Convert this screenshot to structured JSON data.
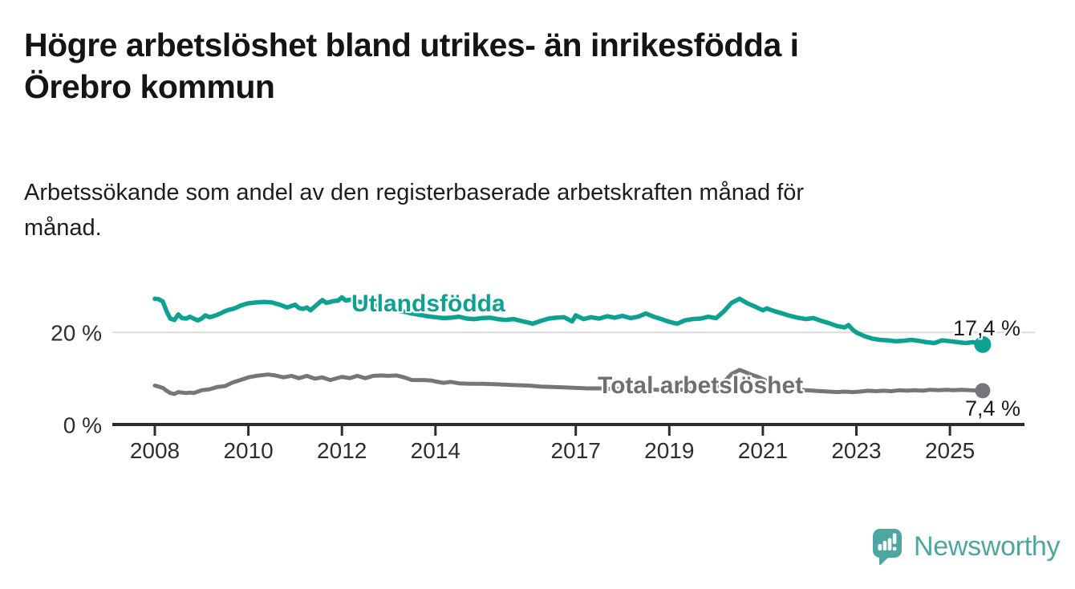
{
  "header": {
    "title": "Högre arbetslöshet bland utrikes- än inrikesfödda i\nÖrebro kommun",
    "subtitle": "Arbetssökande som andel av den registerbaserade arbetskraften månad för\nmånad."
  },
  "chart_data": {
    "type": "line",
    "title": "Högre arbetslöshet bland utrikes- än inrikesfödda i Örebro kommun",
    "subtitle": "Arbetssökande som andel av den registerbaserade arbetskraften månad för månad.",
    "unit": "%",
    "legend_position": "inline-labels-on-lines",
    "grid": "single horizontal gridline at 20 %",
    "x_axis": {
      "range": [
        2007.1,
        2026.6
      ],
      "ticks": [
        {
          "year": 2008,
          "label": "2008"
        },
        {
          "year": 2010,
          "label": "2010"
        },
        {
          "year": 2012,
          "label": "2012"
        },
        {
          "year": 2014,
          "label": "2014"
        },
        {
          "year": 2017,
          "label": "2017"
        },
        {
          "year": 2019,
          "label": "2019"
        },
        {
          "year": 2021,
          "label": "2021"
        },
        {
          "year": 2023,
          "label": "2023"
        },
        {
          "year": 2025,
          "label": "2025"
        }
      ]
    },
    "y_axis": {
      "range": [
        0,
        30.8
      ],
      "ticks": [
        {
          "value": 0,
          "label": "0 %",
          "gridline": false
        },
        {
          "value": 20,
          "label": "20 %",
          "gridline": true
        }
      ]
    },
    "series": [
      {
        "name": "Utlandsfödda",
        "color": "#0ca191",
        "end_value": 17.4,
        "end_label": "17,4 %",
        "points": [
          [
            2008.0,
            27.3
          ],
          [
            2008.08,
            27.2
          ],
          [
            2008.17,
            26.7
          ],
          [
            2008.25,
            24.6
          ],
          [
            2008.33,
            23.0
          ],
          [
            2008.42,
            22.7
          ],
          [
            2008.5,
            23.9
          ],
          [
            2008.58,
            23.1
          ],
          [
            2008.67,
            23.0
          ],
          [
            2008.75,
            23.4
          ],
          [
            2008.83,
            23.0
          ],
          [
            2008.92,
            22.6
          ],
          [
            2009.0,
            23.0
          ],
          [
            2009.08,
            23.7
          ],
          [
            2009.17,
            23.3
          ],
          [
            2009.25,
            23.5
          ],
          [
            2009.33,
            23.8
          ],
          [
            2009.42,
            24.2
          ],
          [
            2009.5,
            24.6
          ],
          [
            2009.58,
            24.9
          ],
          [
            2009.67,
            25.1
          ],
          [
            2009.75,
            25.4
          ],
          [
            2009.83,
            25.8
          ],
          [
            2009.92,
            26.1
          ],
          [
            2010.0,
            26.3
          ],
          [
            2010.17,
            26.5
          ],
          [
            2010.33,
            26.6
          ],
          [
            2010.5,
            26.5
          ],
          [
            2010.67,
            26.0
          ],
          [
            2010.83,
            25.4
          ],
          [
            2011.0,
            26.0
          ],
          [
            2011.08,
            25.3
          ],
          [
            2011.17,
            25.1
          ],
          [
            2011.25,
            25.4
          ],
          [
            2011.33,
            24.8
          ],
          [
            2011.5,
            26.3
          ],
          [
            2011.58,
            27.0
          ],
          [
            2011.67,
            26.4
          ],
          [
            2011.83,
            26.8
          ],
          [
            2011.92,
            26.9
          ],
          [
            2012.0,
            27.6
          ],
          [
            2012.08,
            26.9
          ],
          [
            2012.17,
            27.1
          ],
          [
            2012.33,
            26.7
          ],
          [
            2012.5,
            26.4
          ],
          [
            2012.67,
            26.0
          ],
          [
            2012.83,
            25.5
          ],
          [
            2013.0,
            25.1
          ],
          [
            2013.17,
            24.8
          ],
          [
            2013.33,
            24.5
          ],
          [
            2013.5,
            24.1
          ],
          [
            2013.67,
            23.8
          ],
          [
            2013.83,
            23.5
          ],
          [
            2014.0,
            23.3
          ],
          [
            2014.17,
            23.1
          ],
          [
            2014.33,
            23.2
          ],
          [
            2014.5,
            23.4
          ],
          [
            2014.67,
            23.0
          ],
          [
            2014.83,
            22.9
          ],
          [
            2015.0,
            23.1
          ],
          [
            2015.17,
            23.2
          ],
          [
            2015.33,
            22.9
          ],
          [
            2015.5,
            22.7
          ],
          [
            2015.67,
            22.9
          ],
          [
            2015.83,
            22.5
          ],
          [
            2016.0,
            22.1
          ],
          [
            2016.08,
            21.9
          ],
          [
            2016.25,
            22.5
          ],
          [
            2016.42,
            23.0
          ],
          [
            2016.58,
            23.2
          ],
          [
            2016.75,
            23.3
          ],
          [
            2016.92,
            22.4
          ],
          [
            2017.0,
            23.7
          ],
          [
            2017.17,
            22.9
          ],
          [
            2017.33,
            23.3
          ],
          [
            2017.5,
            23.0
          ],
          [
            2017.67,
            23.5
          ],
          [
            2017.83,
            23.2
          ],
          [
            2018.0,
            23.6
          ],
          [
            2018.17,
            23.1
          ],
          [
            2018.33,
            23.4
          ],
          [
            2018.5,
            24.1
          ],
          [
            2018.67,
            23.4
          ],
          [
            2018.83,
            22.9
          ],
          [
            2019.0,
            22.3
          ],
          [
            2019.17,
            21.9
          ],
          [
            2019.33,
            22.6
          ],
          [
            2019.5,
            22.9
          ],
          [
            2019.67,
            23.0
          ],
          [
            2019.83,
            23.4
          ],
          [
            2020.0,
            23.1
          ],
          [
            2020.17,
            24.6
          ],
          [
            2020.33,
            26.4
          ],
          [
            2020.5,
            27.3
          ],
          [
            2020.67,
            26.3
          ],
          [
            2020.83,
            25.6
          ],
          [
            2021.0,
            24.8
          ],
          [
            2021.08,
            25.2
          ],
          [
            2021.25,
            24.6
          ],
          [
            2021.42,
            24.1
          ],
          [
            2021.58,
            23.6
          ],
          [
            2021.75,
            23.2
          ],
          [
            2021.92,
            22.9
          ],
          [
            2022.08,
            23.1
          ],
          [
            2022.25,
            22.5
          ],
          [
            2022.42,
            22.0
          ],
          [
            2022.58,
            21.4
          ],
          [
            2022.75,
            21.1
          ],
          [
            2022.83,
            21.6
          ],
          [
            2022.92,
            20.6
          ],
          [
            2023.0,
            20.0
          ],
          [
            2023.17,
            19.2
          ],
          [
            2023.33,
            18.7
          ],
          [
            2023.5,
            18.4
          ],
          [
            2023.67,
            18.3
          ],
          [
            2023.83,
            18.1
          ],
          [
            2024.0,
            18.2
          ],
          [
            2024.17,
            18.4
          ],
          [
            2024.33,
            18.2
          ],
          [
            2024.5,
            17.9
          ],
          [
            2024.67,
            17.7
          ],
          [
            2024.83,
            18.3
          ],
          [
            2025.0,
            18.1
          ],
          [
            2025.17,
            17.9
          ],
          [
            2025.33,
            17.7
          ],
          [
            2025.5,
            17.9
          ],
          [
            2025.7,
            17.4
          ]
        ]
      },
      {
        "name": "Total arbetslöshet",
        "color": "#76757b",
        "end_value": 7.4,
        "end_label": "7,4 %",
        "points": [
          [
            2008.0,
            8.5
          ],
          [
            2008.08,
            8.3
          ],
          [
            2008.17,
            8.0
          ],
          [
            2008.25,
            7.4
          ],
          [
            2008.33,
            6.9
          ],
          [
            2008.42,
            6.7
          ],
          [
            2008.5,
            7.1
          ],
          [
            2008.58,
            7.0
          ],
          [
            2008.67,
            6.9
          ],
          [
            2008.75,
            7.0
          ],
          [
            2008.83,
            6.9
          ],
          [
            2008.92,
            7.2
          ],
          [
            2009.0,
            7.5
          ],
          [
            2009.17,
            7.7
          ],
          [
            2009.33,
            8.2
          ],
          [
            2009.5,
            8.4
          ],
          [
            2009.67,
            9.2
          ],
          [
            2009.83,
            9.7
          ],
          [
            2010.0,
            10.3
          ],
          [
            2010.17,
            10.6
          ],
          [
            2010.42,
            10.9
          ],
          [
            2010.58,
            10.7
          ],
          [
            2010.75,
            10.3
          ],
          [
            2010.92,
            10.6
          ],
          [
            2011.08,
            10.1
          ],
          [
            2011.25,
            10.6
          ],
          [
            2011.42,
            10.0
          ],
          [
            2011.58,
            10.3
          ],
          [
            2011.75,
            9.7
          ],
          [
            2012.0,
            10.4
          ],
          [
            2012.17,
            10.1
          ],
          [
            2012.33,
            10.6
          ],
          [
            2012.5,
            10.1
          ],
          [
            2012.67,
            10.6
          ],
          [
            2012.83,
            10.7
          ],
          [
            2013.0,
            10.6
          ],
          [
            2013.17,
            10.7
          ],
          [
            2013.33,
            10.3
          ],
          [
            2013.5,
            9.7
          ],
          [
            2013.75,
            9.7
          ],
          [
            2013.92,
            9.6
          ],
          [
            2014.0,
            9.4
          ],
          [
            2014.17,
            9.1
          ],
          [
            2014.33,
            9.3
          ],
          [
            2014.5,
            9.0
          ],
          [
            2014.75,
            8.9
          ],
          [
            2015.0,
            8.9
          ],
          [
            2015.25,
            8.8
          ],
          [
            2015.5,
            8.7
          ],
          [
            2015.75,
            8.6
          ],
          [
            2016.0,
            8.5
          ],
          [
            2016.25,
            8.3
          ],
          [
            2016.5,
            8.2
          ],
          [
            2016.75,
            8.1
          ],
          [
            2017.0,
            8.0
          ],
          [
            2017.25,
            7.9
          ],
          [
            2017.5,
            7.9
          ],
          [
            2017.75,
            7.8
          ],
          [
            2018.0,
            7.8
          ],
          [
            2018.25,
            7.7
          ],
          [
            2018.5,
            7.7
          ],
          [
            2018.75,
            7.6
          ],
          [
            2019.0,
            7.6
          ],
          [
            2019.25,
            7.6
          ],
          [
            2019.5,
            7.7
          ],
          [
            2019.75,
            7.8
          ],
          [
            2020.0,
            8.2
          ],
          [
            2020.17,
            9.3
          ],
          [
            2020.33,
            11.0
          ],
          [
            2020.5,
            11.9
          ],
          [
            2020.58,
            11.6
          ],
          [
            2020.75,
            10.9
          ],
          [
            2020.92,
            10.3
          ],
          [
            2021.08,
            9.5
          ],
          [
            2021.25,
            8.9
          ],
          [
            2021.42,
            8.3
          ],
          [
            2021.58,
            7.9
          ],
          [
            2021.75,
            7.7
          ],
          [
            2021.92,
            7.5
          ],
          [
            2022.08,
            7.4
          ],
          [
            2022.25,
            7.3
          ],
          [
            2022.42,
            7.2
          ],
          [
            2022.58,
            7.1
          ],
          [
            2022.75,
            7.2
          ],
          [
            2022.92,
            7.1
          ],
          [
            2023.08,
            7.2
          ],
          [
            2023.25,
            7.4
          ],
          [
            2023.42,
            7.3
          ],
          [
            2023.58,
            7.4
          ],
          [
            2023.75,
            7.3
          ],
          [
            2023.92,
            7.5
          ],
          [
            2024.08,
            7.4
          ],
          [
            2024.25,
            7.5
          ],
          [
            2024.42,
            7.4
          ],
          [
            2024.58,
            7.6
          ],
          [
            2024.75,
            7.5
          ],
          [
            2024.92,
            7.6
          ],
          [
            2025.08,
            7.5
          ],
          [
            2025.25,
            7.6
          ],
          [
            2025.42,
            7.5
          ],
          [
            2025.7,
            7.4
          ]
        ]
      }
    ]
  },
  "branding": {
    "logo_text": "Newsworthy",
    "logo_color": "#4ca6a1",
    "logo_icon": "bar-chart-speech-bubble-icon"
  }
}
